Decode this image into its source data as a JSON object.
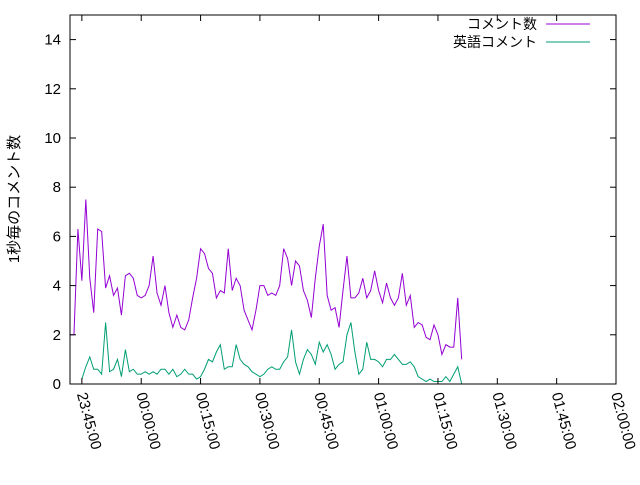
{
  "chart_data": {
    "type": "line",
    "title": "",
    "xlabel": "",
    "ylabel": "1秒毎のコメント数",
    "xlim": [
      "23:42:00",
      "02:00:00"
    ],
    "ylim": [
      0,
      15
    ],
    "y_ticks": [
      0,
      2,
      4,
      6,
      8,
      10,
      12,
      14
    ],
    "x_ticks": [
      "23:45:00",
      "00:00:00",
      "00:15:00",
      "00:30:00",
      "00:45:00",
      "01:00:00",
      "01:15:00",
      "01:30:00",
      "01:45:00",
      "02:00:00"
    ],
    "grid": false,
    "legend_position": "top-right",
    "x_interval_seconds": 60,
    "series": [
      {
        "name": "コメント数",
        "color": "#9400d3",
        "values": [
          2.0,
          2.0,
          6.3,
          4.2,
          7.5,
          4.3,
          2.9,
          6.3,
          6.2,
          3.9,
          4.4,
          3.6,
          3.9,
          2.8,
          4.4,
          4.5,
          4.3,
          3.6,
          3.5,
          3.6,
          4.0,
          5.2,
          3.7,
          3.2,
          4.0,
          2.9,
          2.3,
          2.8,
          2.3,
          2.2,
          2.6,
          3.5,
          4.3,
          5.5,
          5.3,
          4.7,
          4.5,
          3.5,
          3.8,
          3.7,
          5.5,
          3.8,
          4.3,
          4.0,
          3.0,
          2.6,
          2.2,
          3.0,
          4.0,
          4.0,
          3.6,
          3.7,
          3.6,
          4.0,
          5.5,
          5.1,
          4.0,
          5.0,
          4.8,
          3.8,
          3.4,
          2.7,
          4.3,
          5.6,
          6.5,
          3.6,
          3.0,
          3.1,
          2.3,
          3.8,
          5.2,
          3.5,
          3.5,
          3.7,
          4.3,
          3.5,
          3.8,
          4.6,
          3.8,
          3.3,
          4.1,
          3.5,
          3.2,
          3.5,
          4.5,
          3.2,
          3.6,
          2.3,
          2.5,
          2.4,
          1.9,
          1.8,
          2.4,
          2.0,
          1.2,
          1.6,
          1.5,
          1.5,
          3.5,
          1.0
        ],
        "start_index": 0
      },
      {
        "name": "英語コメント",
        "color": "#009e73",
        "values": [
          0.2,
          0.7,
          1.1,
          0.6,
          0.6,
          0.4,
          2.5,
          0.5,
          0.6,
          1.0,
          0.3,
          1.4,
          0.5,
          0.6,
          0.4,
          0.4,
          0.5,
          0.4,
          0.5,
          0.4,
          0.6,
          0.6,
          0.4,
          0.6,
          0.3,
          0.4,
          0.6,
          0.4,
          0.4,
          0.2,
          0.3,
          0.6,
          1.0,
          0.9,
          1.3,
          1.6,
          0.6,
          0.7,
          0.7,
          1.6,
          1.0,
          0.8,
          0.7,
          0.5,
          0.4,
          0.3,
          0.4,
          0.6,
          0.7,
          0.6,
          0.6,
          0.9,
          1.1,
          2.2,
          0.9,
          0.4,
          1.0,
          1.4,
          1.2,
          0.8,
          1.7,
          1.3,
          1.6,
          1.2,
          0.6,
          0.8,
          0.9,
          2.0,
          2.5,
          1.3,
          0.4,
          0.6,
          1.7,
          1.0,
          1.0,
          0.9,
          0.7,
          1.0,
          1.0,
          1.2,
          1.0,
          0.8,
          0.8,
          0.9,
          0.7,
          0.3,
          0.2,
          0.1,
          0.2,
          0.1,
          0.1,
          0.1,
          0.3,
          0.1,
          0.4,
          0.7,
          0.0
        ],
        "start_index": 3
      }
    ]
  }
}
